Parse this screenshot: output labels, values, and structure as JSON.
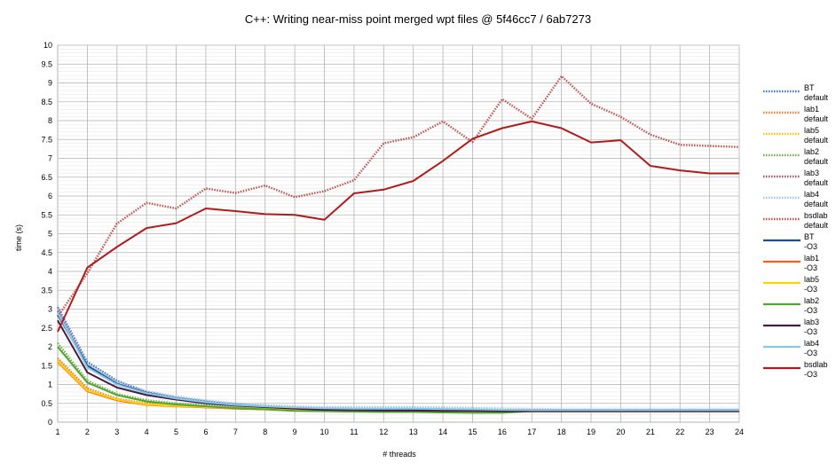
{
  "chart_data": {
    "type": "line",
    "title": "C++: Writing near-miss point merged wpt files @ 5f46cc7 / 6ab7273",
    "xlabel": "# threads",
    "ylabel": "time (s)",
    "x": [
      1,
      2,
      3,
      4,
      5,
      6,
      7,
      8,
      9,
      10,
      11,
      12,
      13,
      14,
      15,
      16,
      17,
      18,
      19,
      20,
      21,
      22,
      23,
      24
    ],
    "xlim": [
      1,
      24
    ],
    "ylim": [
      0,
      10
    ],
    "yticks": [
      "0",
      "0.5",
      "1",
      "1.5",
      "2",
      "2.5",
      "3",
      "3.5",
      "4",
      "4.5",
      "5",
      "5.5",
      "6",
      "6.5",
      "7",
      "7.5",
      "8",
      "8.5",
      "9",
      "9.5",
      "10"
    ],
    "grid": true,
    "legend_position": "right",
    "series": [
      {
        "name": "BT default",
        "color": "#4472c4",
        "dashed": true,
        "values": [
          3.05,
          1.6,
          1.1,
          0.8,
          0.65,
          0.55,
          0.47,
          0.42,
          0.38,
          0.36,
          0.35,
          0.34,
          0.33,
          0.33,
          0.32,
          0.32,
          0.32,
          0.32,
          0.32,
          0.32,
          0.32,
          0.32,
          0.32,
          0.32
        ]
      },
      {
        "name": "lab1 default",
        "color": "#ed7d31",
        "dashed": true,
        "values": [
          1.7,
          0.9,
          0.62,
          0.5,
          0.45,
          0.41,
          0.38,
          0.36,
          0.35,
          0.35,
          0.34,
          0.34,
          0.33,
          0.33,
          0.32,
          0.32,
          0.32,
          0.32,
          0.32,
          0.32,
          0.32,
          0.32,
          0.32,
          0.32
        ]
      },
      {
        "name": "lab5 default",
        "color": "#ffc000",
        "dashed": true,
        "values": [
          1.65,
          0.85,
          0.6,
          0.48,
          0.43,
          0.4,
          0.37,
          0.35,
          0.34,
          0.34,
          0.33,
          0.33,
          0.32,
          0.32,
          0.32,
          0.31,
          0.31,
          0.31,
          0.31,
          0.31,
          0.31,
          0.31,
          0.31,
          0.31
        ]
      },
      {
        "name": "lab2 default",
        "color": "#70ad47",
        "dashed": true,
        "values": [
          2.1,
          1.1,
          0.75,
          0.58,
          0.5,
          0.45,
          0.41,
          0.38,
          0.36,
          0.35,
          0.34,
          0.33,
          0.33,
          0.32,
          0.32,
          0.32,
          0.31,
          0.31,
          0.31,
          0.31,
          0.31,
          0.31,
          0.31,
          0.31
        ]
      },
      {
        "name": "lab3 default",
        "color": "#a05070",
        "dashed": true,
        "values": [
          2.95,
          1.5,
          1.02,
          0.78,
          0.62,
          0.52,
          0.45,
          0.41,
          0.38,
          0.36,
          0.35,
          0.34,
          0.33,
          0.33,
          0.32,
          0.32,
          0.32,
          0.32,
          0.32,
          0.32,
          0.32,
          0.32,
          0.32,
          0.32
        ]
      },
      {
        "name": "lab4 default",
        "color": "#9dc3e6",
        "dashed": true,
        "values": [
          3.0,
          1.55,
          1.08,
          0.82,
          0.68,
          0.58,
          0.5,
          0.45,
          0.42,
          0.4,
          0.4,
          0.4,
          0.4,
          0.39,
          0.38,
          0.36,
          0.35,
          0.34,
          0.34,
          0.34,
          0.34,
          0.34,
          0.34,
          0.34
        ]
      },
      {
        "name": "bsdlab default",
        "color": "#c0504d",
        "dashed": true,
        "values": [
          2.8,
          3.95,
          5.27,
          5.82,
          5.67,
          6.2,
          6.08,
          6.28,
          5.97,
          6.13,
          6.42,
          7.4,
          7.56,
          7.98,
          7.43,
          8.57,
          8.05,
          9.18,
          8.45,
          8.1,
          7.63,
          7.36,
          7.33,
          7.3
        ]
      },
      {
        "name": "BT -O3",
        "color": "#1f4e8c",
        "dashed": false,
        "values": [
          2.85,
          1.5,
          1.02,
          0.78,
          0.63,
          0.53,
          0.46,
          0.41,
          0.38,
          0.36,
          0.35,
          0.34,
          0.33,
          0.33,
          0.32,
          0.32,
          0.31,
          0.31,
          0.31,
          0.31,
          0.31,
          0.31,
          0.31,
          0.31
        ]
      },
      {
        "name": "lab1 -O3",
        "color": "#ff5a1f",
        "dashed": false,
        "values": [
          1.6,
          0.82,
          0.58,
          0.46,
          0.42,
          0.39,
          0.36,
          0.34,
          0.33,
          0.32,
          0.31,
          0.3,
          0.3,
          0.3,
          0.29,
          0.29,
          0.29,
          0.29,
          0.29,
          0.29,
          0.29,
          0.29,
          0.29,
          0.29
        ]
      },
      {
        "name": "lab5 -O3",
        "color": "#ffd200",
        "dashed": false,
        "values": [
          1.62,
          0.84,
          0.6,
          0.47,
          0.43,
          0.4,
          0.37,
          0.35,
          0.33,
          0.32,
          0.31,
          0.3,
          0.3,
          0.3,
          0.29,
          0.29,
          0.29,
          0.29,
          0.29,
          0.29,
          0.29,
          0.29,
          0.29,
          0.29
        ]
      },
      {
        "name": "lab2 -O3",
        "color": "#4ea72e",
        "dashed": false,
        "values": [
          2.0,
          1.05,
          0.72,
          0.55,
          0.47,
          0.42,
          0.37,
          0.34,
          0.3,
          0.29,
          0.28,
          0.27,
          0.27,
          0.26,
          0.25,
          0.25,
          0.29,
          0.29,
          0.29,
          0.29,
          0.29,
          0.29,
          0.29,
          0.29
        ]
      },
      {
        "name": "lab3 -O3",
        "color": "#4b1b3f",
        "dashed": false,
        "values": [
          2.7,
          1.32,
          0.92,
          0.72,
          0.6,
          0.5,
          0.44,
          0.4,
          0.36,
          0.33,
          0.32,
          0.31,
          0.31,
          0.3,
          0.3,
          0.29,
          0.29,
          0.29,
          0.29,
          0.29,
          0.29,
          0.29,
          0.29,
          0.29
        ]
      },
      {
        "name": "lab4 -O3",
        "color": "#87c8e8",
        "dashed": false,
        "values": [
          2.9,
          1.45,
          1.0,
          0.77,
          0.63,
          0.53,
          0.46,
          0.42,
          0.39,
          0.37,
          0.36,
          0.36,
          0.36,
          0.35,
          0.34,
          0.33,
          0.32,
          0.32,
          0.32,
          0.32,
          0.32,
          0.32,
          0.32,
          0.32
        ]
      },
      {
        "name": "bsdlab -O3",
        "color": "#b01c1c",
        "dashed": false,
        "values": [
          2.4,
          4.1,
          4.65,
          5.15,
          5.28,
          5.67,
          5.6,
          5.52,
          5.5,
          5.37,
          6.07,
          6.17,
          6.4,
          6.93,
          7.52,
          7.8,
          7.98,
          7.8,
          7.42,
          7.48,
          6.8,
          6.68,
          6.6,
          6.6
        ]
      }
    ]
  }
}
